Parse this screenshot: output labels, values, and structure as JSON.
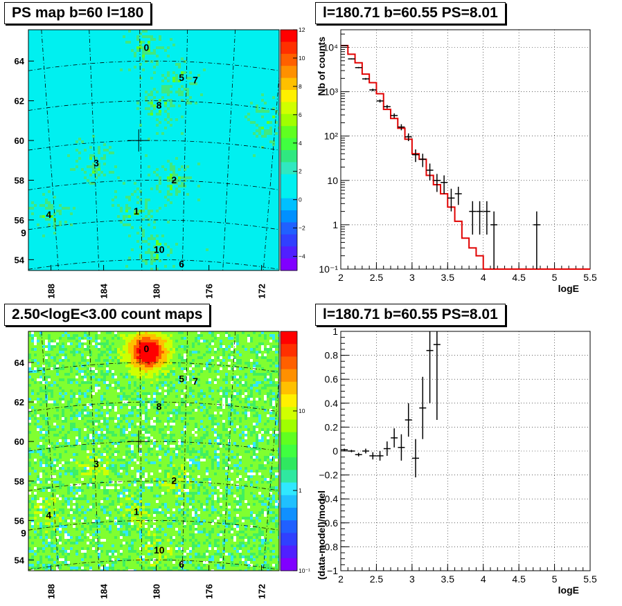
{
  "panels": {
    "ps_map": {
      "title": "PS map b=60 l=180",
      "y_ticks": [
        "54",
        "56",
        "58",
        "60",
        "62",
        "64"
      ],
      "x_ticks": [
        "188",
        "184",
        "180",
        "176",
        "172"
      ],
      "colorbar": {
        "ticks": [
          "12",
          "10",
          "8",
          "6",
          "4",
          "2",
          "0",
          "−2",
          "−4"
        ],
        "min": -5,
        "max": 12
      },
      "sources": [
        {
          "label": "0",
          "lon": 180.1,
          "lat": 64.4
        },
        {
          "label": "5",
          "lon": 175.9,
          "lat": 63.1
        },
        {
          "label": "7",
          "lon": 175.2,
          "lat": 62.9
        },
        {
          "label": "8",
          "lon": 178.9,
          "lat": 61.6
        },
        {
          "label": "3",
          "lon": 183.6,
          "lat": 58.9
        },
        {
          "label": "2",
          "lon": 177.3,
          "lat": 57.9
        },
        {
          "label": "4",
          "lon": 189.0,
          "lat": 56.3
        },
        {
          "label": "1",
          "lon": 181.0,
          "lat": 56.4
        },
        {
          "label": "9",
          "lon": 190.5,
          "lat": 55.4
        },
        {
          "label": "10",
          "lon": 179.4,
          "lat": 54.5
        },
        {
          "label": "6",
          "lon": 176.6,
          "lat": 54.0
        }
      ]
    },
    "count_map": {
      "title": "2.50<logE<3.00 count maps",
      "y_ticks": [
        "54",
        "56",
        "58",
        "60",
        "62",
        "64"
      ],
      "x_ticks": [
        "188",
        "184",
        "180",
        "176",
        "172"
      ],
      "colorbar": {
        "ticks": [
          "10",
          "1",
          "10⁻¹"
        ]
      }
    },
    "spectrum": {
      "title": "l=180.71 b=60.55 PS=8.01"
    },
    "residuals": {
      "title": "l=180.71 b=60.55 PS=8.01"
    }
  },
  "colors": {
    "model": "#e00000",
    "data": "#000000",
    "map_bg": "#00f0f0",
    "count_bg": "#40e040"
  },
  "chart_data": [
    {
      "type": "line",
      "title": "l=180.71 b=60.55 PS=8.01",
      "xlabel": "logE",
      "ylabel": "Nb of counts",
      "yscale": "log",
      "xlim": [
        2,
        5.5
      ],
      "ylim": [
        0.1,
        25000
      ],
      "x_tick_labels": [
        "2",
        "2.5",
        "3",
        "3.5",
        "4",
        "4.5",
        "5",
        "5.5"
      ],
      "y_tick_labels": [
        "10⁻¹",
        "1",
        "10",
        "10²",
        "10³",
        "10⁴"
      ],
      "grid": true,
      "series": [
        {
          "role": "model",
          "type": "step",
          "x_edges": [
            2.0,
            2.1,
            2.2,
            2.3,
            2.4,
            2.5,
            2.6,
            2.7,
            2.8,
            2.9,
            3.0,
            3.1,
            3.2,
            3.3,
            3.4,
            3.5,
            3.6,
            3.7,
            3.8,
            3.9,
            4.0,
            4.1,
            4.2,
            4.3,
            4.4,
            4.5,
            4.6,
            4.7,
            4.8,
            4.9,
            5.0,
            5.1,
            5.2,
            5.3,
            5.4,
            5.5
          ],
          "values": [
            11000,
            7000,
            4500,
            2500,
            1600,
            900,
            400,
            250,
            150,
            85,
            40,
            30,
            13,
            8,
            5,
            2.5,
            1.2,
            0.5,
            0.3,
            0.2,
            0.1,
            0.1,
            0.1,
            0.1,
            0.1,
            0.1,
            0.1,
            0.1,
            0.1,
            0.1,
            0.1,
            0.1,
            0.1,
            0.1,
            0.1
          ]
        },
        {
          "role": "data",
          "type": "errorbar",
          "points": [
            {
              "x": 2.05,
              "y": 11000,
              "lo": 10800,
              "hi": 11200
            },
            {
              "x": 2.15,
              "y": 5500,
              "lo": 5350,
              "hi": 5650
            },
            {
              "x": 2.25,
              "y": 3500,
              "lo": 3380,
              "hi": 3620
            },
            {
              "x": 2.35,
              "y": 1950,
              "lo": 1860,
              "hi": 2040
            },
            {
              "x": 2.45,
              "y": 1100,
              "lo": 1030,
              "hi": 1170
            },
            {
              "x": 2.55,
              "y": 620,
              "lo": 570,
              "hi": 670
            },
            {
              "x": 2.65,
              "y": 460,
              "lo": 418,
              "hi": 502
            },
            {
              "x": 2.75,
              "y": 290,
              "lo": 256,
              "hi": 324
            },
            {
              "x": 2.85,
              "y": 160,
              "lo": 135,
              "hi": 185
            },
            {
              "x": 2.95,
              "y": 96,
              "lo": 77,
              "hi": 115
            },
            {
              "x": 3.05,
              "y": 38,
              "lo": 26,
              "hi": 50
            },
            {
              "x": 3.15,
              "y": 30,
              "lo": 20,
              "hi": 40
            },
            {
              "x": 3.25,
              "y": 17,
              "lo": 10,
              "hi": 24
            },
            {
              "x": 3.35,
              "y": 10,
              "lo": 5.5,
              "hi": 14
            },
            {
              "x": 3.45,
              "y": 9,
              "lo": 5,
              "hi": 13
            },
            {
              "x": 3.55,
              "y": 4,
              "lo": 2,
              "hi": 6.5
            },
            {
              "x": 3.65,
              "y": 5,
              "lo": 2.8,
              "hi": 7.2
            },
            {
              "x": 3.85,
              "y": 2,
              "lo": 0.6,
              "hi": 3.4
            },
            {
              "x": 3.95,
              "y": 2,
              "lo": 0.6,
              "hi": 3.4
            },
            {
              "x": 4.05,
              "y": 2,
              "lo": 0.6,
              "hi": 3.4
            },
            {
              "x": 4.15,
              "y": 1,
              "lo": 0.1,
              "hi": 2
            },
            {
              "x": 4.75,
              "y": 1,
              "lo": 0.1,
              "hi": 2
            }
          ]
        }
      ]
    },
    {
      "type": "scatter",
      "title": "l=180.71 b=60.55 PS=8.01",
      "xlabel": "logE",
      "ylabel": "(data-model)/model",
      "xlim": [
        2,
        5.5
      ],
      "ylim": [
        -1,
        1
      ],
      "x_tick_labels": [
        "2",
        "2.5",
        "3",
        "3.5",
        "4",
        "4.5",
        "5",
        "5.5"
      ],
      "y_tick_labels": [
        "−1",
        "−0.8",
        "−0.6",
        "−0.4",
        "−0.2",
        "0",
        "0.2",
        "0.4",
        "0.6",
        "0.8",
        "1"
      ],
      "grid": true,
      "series": [
        {
          "role": "data",
          "type": "errorbar",
          "points": [
            {
              "x": 2.05,
              "y": 0.01,
              "lo": 0.0,
              "hi": 0.02
            },
            {
              "x": 2.15,
              "y": 0.0,
              "lo": -0.01,
              "hi": 0.01
            },
            {
              "x": 2.25,
              "y": -0.03,
              "lo": -0.045,
              "hi": -0.015
            },
            {
              "x": 2.35,
              "y": 0.0,
              "lo": -0.02,
              "hi": 0.02
            },
            {
              "x": 2.45,
              "y": -0.04,
              "lo": -0.07,
              "hi": -0.01
            },
            {
              "x": 2.55,
              "y": -0.04,
              "lo": -0.08,
              "hi": 0.0
            },
            {
              "x": 2.65,
              "y": 0.02,
              "lo": -0.04,
              "hi": 0.08
            },
            {
              "x": 2.75,
              "y": 0.11,
              "lo": 0.03,
              "hi": 0.19
            },
            {
              "x": 2.85,
              "y": 0.03,
              "lo": -0.08,
              "hi": 0.14
            },
            {
              "x": 2.95,
              "y": 0.26,
              "lo": 0.12,
              "hi": 0.4
            },
            {
              "x": 3.05,
              "y": -0.06,
              "lo": -0.22,
              "hi": 0.1
            },
            {
              "x": 3.15,
              "y": 0.36,
              "lo": 0.1,
              "hi": 0.62
            },
            {
              "x": 3.25,
              "y": 0.84,
              "lo": 0.4,
              "hi": 1.0
            },
            {
              "x": 3.35,
              "y": 0.89,
              "lo": 0.26,
              "hi": 1.0
            }
          ]
        }
      ]
    }
  ]
}
